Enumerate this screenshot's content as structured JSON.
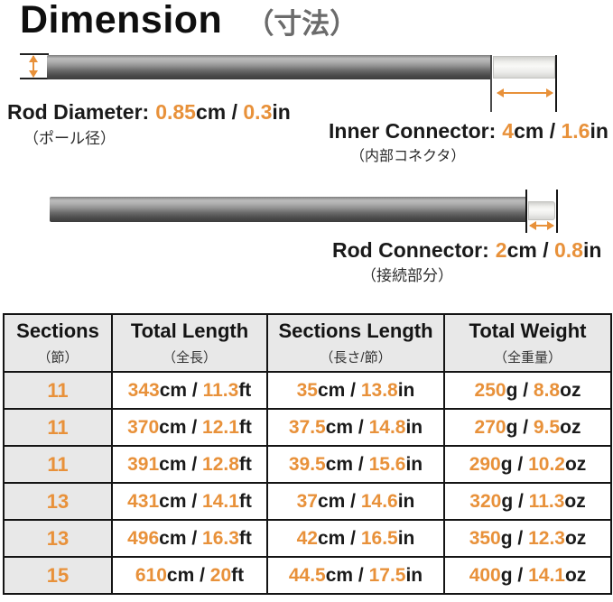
{
  "accent_color": "#E8913A",
  "sep": " / ",
  "title": {
    "text": "Dimension",
    "jp": "（寸法）"
  },
  "diagram": {
    "rod_diameter": {
      "label": "Rod Diameter:",
      "cm_value": "0.85",
      "cm_unit": "cm",
      "in_value": "0.3",
      "in_unit": "in",
      "jp": "（ポール径）"
    },
    "inner_connector": {
      "label": "Inner Connector:",
      "cm_value": "4",
      "cm_unit": "cm",
      "in_value": "1.6",
      "in_unit": "in",
      "jp": "（内部コネクタ）"
    },
    "rod_connector": {
      "label": "Rod Connector:",
      "cm_value": "2",
      "cm_unit": "cm",
      "in_value": "0.8",
      "in_unit": "in",
      "jp": "（接続部分）"
    }
  },
  "table": {
    "headers": {
      "sections": {
        "en": "Sections",
        "jp": "（節）"
      },
      "total_length": {
        "en": "Total Length",
        "jp": "（全長）"
      },
      "sections_length": {
        "en": "Sections Length",
        "jp": "（長さ/節）"
      },
      "total_weight": {
        "en": "Total Weight",
        "jp": "（全重量）"
      }
    },
    "rows": [
      {
        "sections": "11",
        "total_length": {
          "v1": "343",
          "u1": "cm",
          "v2": "11.3",
          "u2": "ft"
        },
        "sections_length": {
          "v1": "35",
          "u1": "cm",
          "v2": "13.8",
          "u2": "in"
        },
        "total_weight": {
          "v1": "250",
          "u1": "g",
          "v2": "8.8",
          "u2": "oz"
        }
      },
      {
        "sections": "11",
        "total_length": {
          "v1": "370",
          "u1": "cm",
          "v2": "12.1",
          "u2": "ft"
        },
        "sections_length": {
          "v1": "37.5",
          "u1": "cm",
          "v2": "14.8",
          "u2": "in"
        },
        "total_weight": {
          "v1": "270",
          "u1": "g",
          "v2": "9.5",
          "u2": "oz"
        }
      },
      {
        "sections": "11",
        "total_length": {
          "v1": "391",
          "u1": "cm",
          "v2": "12.8",
          "u2": "ft"
        },
        "sections_length": {
          "v1": "39.5",
          "u1": "cm",
          "v2": "15.6",
          "u2": "in"
        },
        "total_weight": {
          "v1": "290",
          "u1": "g",
          "v2": "10.2",
          "u2": "oz"
        }
      },
      {
        "sections": "13",
        "total_length": {
          "v1": "431",
          "u1": "cm",
          "v2": "14.1",
          "u2": "ft"
        },
        "sections_length": {
          "v1": "37",
          "u1": "cm",
          "v2": "14.6",
          "u2": "in"
        },
        "total_weight": {
          "v1": "320",
          "u1": "g",
          "v2": "11.3",
          "u2": "oz"
        }
      },
      {
        "sections": "13",
        "total_length": {
          "v1": "496",
          "u1": "cm",
          "v2": "16.3",
          "u2": "ft"
        },
        "sections_length": {
          "v1": "42",
          "u1": "cm",
          "v2": "16.5",
          "u2": "in"
        },
        "total_weight": {
          "v1": "350",
          "u1": "g",
          "v2": "12.3",
          "u2": "oz"
        }
      },
      {
        "sections": "15",
        "total_length": {
          "v1": "610",
          "u1": "cm",
          "v2": "20",
          "u2": "ft"
        },
        "sections_length": {
          "v1": "44.5",
          "u1": "cm",
          "v2": "17.5",
          "u2": "in"
        },
        "total_weight": {
          "v1": "400",
          "u1": "g",
          "v2": "14.1",
          "u2": "oz"
        }
      }
    ]
  }
}
